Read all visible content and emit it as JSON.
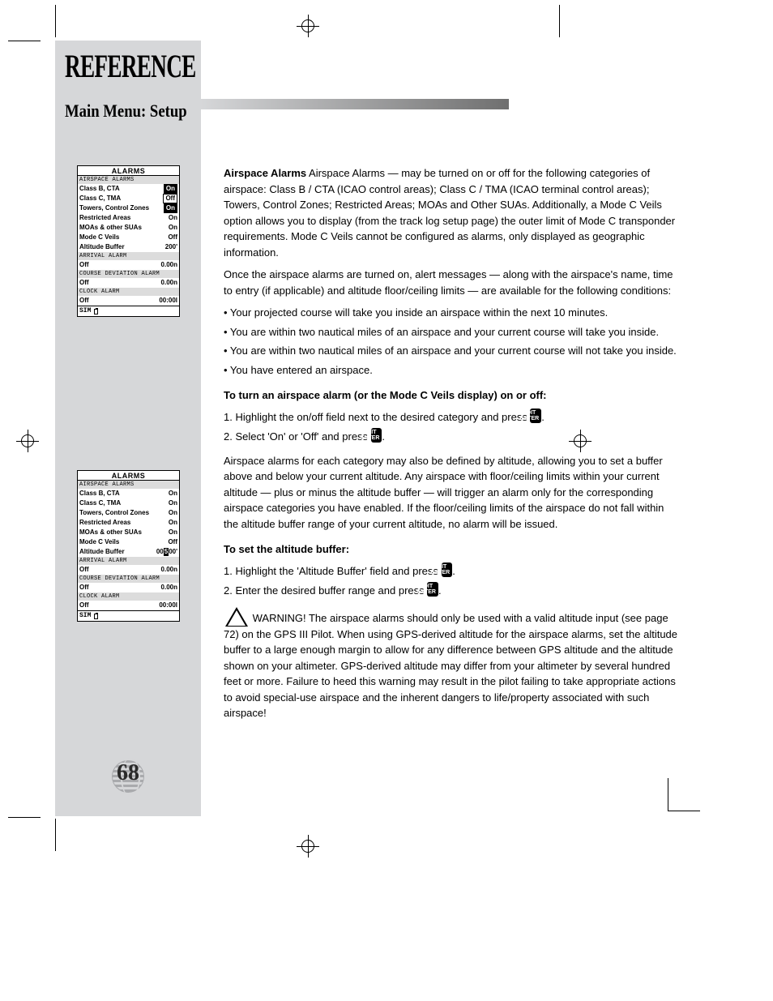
{
  "page": {
    "title": "REFERENCE",
    "subtitle": "Main Menu: Setup",
    "number": "68"
  },
  "colors": {
    "sidebar_bg": "#d6d7d9",
    "gradient_start": "#d6d7d9",
    "gradient_end": "#6f6f6f",
    "lcd_section_bg": "#dcdcdc",
    "text": "#000000"
  },
  "lcd1": {
    "title": "ALARMS",
    "sections": [
      {
        "label": "AIRSPACE ALARMS",
        "rows": [
          {
            "label": "Class B, CTA",
            "value": "On",
            "style": "boxed-inv"
          },
          {
            "label": "Class C, TMA",
            "value": "Off",
            "style": "boxed"
          },
          {
            "label": "Towers, Control Zones",
            "value": "On",
            "style": "boxed-inv"
          },
          {
            "label": "Restricted Areas",
            "value": "On",
            "style": "plain"
          },
          {
            "label": "MOAs & other SUAs",
            "value": "On",
            "style": "plain"
          },
          {
            "label": "Mode C Veils",
            "value": "Off",
            "style": "plain"
          },
          {
            "label": "Altitude Buffer",
            "value": "200'",
            "style": "plain"
          }
        ]
      },
      {
        "label": "ARRIVAL ALARM",
        "rows": [
          {
            "label": "Off",
            "value": "0.00n",
            "style": "plain"
          }
        ]
      },
      {
        "label": "COURSE DEVIATION ALARM",
        "rows": [
          {
            "label": "Off",
            "value": "0.00n",
            "style": "plain"
          }
        ]
      },
      {
        "label": "CLOCK ALARM",
        "rows": [
          {
            "label": "Off",
            "value": "00:00l",
            "style": "plain"
          }
        ]
      }
    ],
    "status": "SIM"
  },
  "lcd2": {
    "title": "ALARMS",
    "sections": [
      {
        "label": "AIRSPACE ALARMS",
        "rows": [
          {
            "label": "Class B, CTA",
            "value": "On",
            "style": "plain"
          },
          {
            "label": "Class C, TMA",
            "value": "On",
            "style": "plain"
          },
          {
            "label": "Towers, Control Zones",
            "value": "On",
            "style": "plain"
          },
          {
            "label": "Restricted Areas",
            "value": "On",
            "style": "plain"
          },
          {
            "label": "MOAs & other SUAs",
            "value": "On",
            "style": "plain"
          },
          {
            "label": "Mode C Veils",
            "value": "Off",
            "style": "plain"
          },
          {
            "label": "Altitude Buffer",
            "value_pre": "00",
            "value_cursor": "5",
            "value_post": "00'",
            "style": "cursor"
          }
        ]
      },
      {
        "label": "ARRIVAL ALARM",
        "rows": [
          {
            "label": "Off",
            "value": "0.00n",
            "style": "plain"
          }
        ]
      },
      {
        "label": "COURSE DEVIATION ALARM",
        "rows": [
          {
            "label": "Off",
            "value": "0.00n",
            "style": "plain"
          }
        ]
      },
      {
        "label": "CLOCK ALARM",
        "rows": [
          {
            "label": "Off",
            "value": "00:00l",
            "style": "plain"
          }
        ]
      }
    ],
    "status": "SIM"
  },
  "body": {
    "p1": "Airspace Alarms — may be turned on or off for the following categories of airspace: Class B / CTA (ICAO control areas); Class C / TMA (ICAO terminal control areas); Towers, Control Zones; Restricted Areas; MOAs and Other SUAs. Additionally, a Mode C Veils option allows you to display (from the track log setup page) the outer limit of Mode C transponder requirements. Mode C Veils cannot be configured as alarms, only displayed as geographic information.",
    "p2": "Once the airspace alarms are turned on, alert messages — along with the airspace's name, time to entry (if applicable) and altitude floor/ceiling limits — are available for the following conditions:",
    "b1": "• Your projected course will take you inside an airspace within the next 10 minutes.",
    "b2": "• You are within two nautical miles of an airspace and your current course will take you inside.",
    "b3": "• You are within two nautical miles of an airspace and your current course will not take you inside.",
    "b4": "• You have entered an airspace.",
    "h1": "To turn an airspace alarm (or the Mode C Veils display) on or off:",
    "s1a": "1. Highlight the on/off field next to the desired category and press ",
    "s1b": ".",
    "s2a": "2. Select 'On' or 'Off' and press ",
    "s2b": ".",
    "p3": "Airspace alarms for each category may also be defined by altitude, allowing you to set a buffer above and below your current altitude. Any airspace with floor/ceiling limits within your current altitude — plus or minus the altitude buffer — will trigger an alarm only for the corresponding airspace categories you have enabled. If the floor/ceiling limits of the airspace do not fall within the altitude buffer range of your current altitude, no alarm will be issued.",
    "h2": "To set the altitude buffer:",
    "s3a": "1. Highlight the 'Altitude Buffer' field and press ",
    "s3b": ".",
    "s4a": "2. Enter the desired buffer range and press ",
    "s4b": ".",
    "warn_a": "WARNING! The airspace alarms should only be used with a valid altitude input (see page 72) on the GPS III Pilot. When using GPS-derived altitude for the airspace alarms, set the altitude buffer to a large enough margin to allow for any difference between GPS altitude and the altitude shown on your altimeter. GPS-derived altitude may differ from your altimeter by several hundred feet or more. Failure to heed this warning may result in the pilot failing to take appropriate actions to avoid special-use airspace and the inherent dangers to life/property associated with such airspace!",
    "edit_label_top": "EDIT",
    "edit_label_bot": "ENTER"
  }
}
